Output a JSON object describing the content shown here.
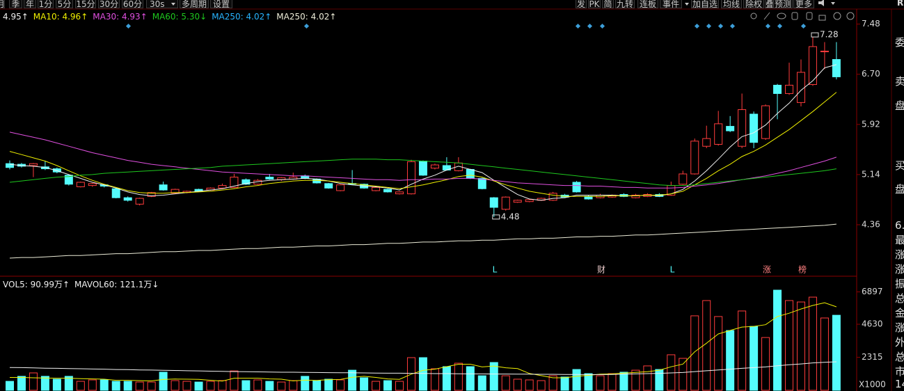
{
  "toolbar": {
    "left": [
      "月",
      "季",
      "年",
      "1分",
      "5分",
      "15分",
      "30分",
      "60分",
      "30s",
      "多周期",
      "设置"
    ],
    "right": [
      "发",
      "PK",
      "简",
      "九转",
      "连板",
      "事件",
      "加自选",
      "均线",
      "除权",
      "叠",
      "预测",
      "更多"
    ]
  },
  "top_right": "R",
  "side_panel": [
    "委",
    "卖",
    "盘",
    "买",
    "盘",
    "6.",
    "最",
    "涨",
    "涨",
    "振",
    "总",
    "金",
    "涨",
    "外",
    "总",
    "市",
    "14"
  ],
  "chart_data": [
    {
      "type": "candlestick",
      "categories": [
        null,
        null,
        null,
        null,
        null,
        null,
        null,
        null,
        null,
        null,
        null,
        null,
        null,
        null,
        null,
        null,
        null,
        null,
        null,
        null,
        null,
        null,
        null,
        null,
        null,
        null,
        null,
        null,
        null,
        null,
        null,
        null,
        null,
        null,
        null,
        null,
        null,
        null,
        null,
        null,
        null,
        null,
        null,
        null,
        null,
        null,
        null,
        null,
        null,
        null,
        null,
        null,
        null,
        null,
        null,
        null,
        null,
        null,
        null,
        null,
        null,
        null,
        null,
        null,
        null,
        null,
        null,
        null,
        null,
        null,
        null
      ],
      "open": [
        5.31,
        5.3,
        5.28,
        5.26,
        5.23,
        5.13,
        4.95,
        4.97,
        4.98,
        4.92,
        4.78,
        4.68,
        4.8,
        4.98,
        4.85,
        4.86,
        4.91,
        4.9,
        4.93,
        4.94,
        5.06,
        4.99,
        5.1,
        5.06,
        5.07,
        5.12,
        5.07,
        5.0,
        4.89,
        5.0,
        4.99,
        4.89,
        4.91,
        4.84,
        4.84,
        5.35,
        5.24,
        5.28,
        5.2,
        5.22,
        5.08,
        4.78,
        4.6,
        4.71,
        4.72,
        4.74,
        4.74,
        4.82,
        5.02,
        4.8,
        4.78,
        4.79,
        4.83,
        4.78,
        4.8,
        4.83,
        4.82,
        4.99,
        5.15,
        5.58,
        5.61,
        5.89,
        5.58,
        6.08,
        5.7,
        6.53,
        6.4,
        6.26,
        6.54,
        7.05,
        6.93
      ],
      "high": [
        5.36,
        5.32,
        5.32,
        5.35,
        5.25,
        5.14,
        5.03,
        5.01,
        4.99,
        4.93,
        4.8,
        4.78,
        4.87,
        5.03,
        4.92,
        4.89,
        4.92,
        4.94,
        5.0,
        5.15,
        5.08,
        5.07,
        5.15,
        5.1,
        5.17,
        5.14,
        5.08,
        5.01,
        4.99,
        5.21,
        5.0,
        4.95,
        4.92,
        4.88,
        5.37,
        5.36,
        5.31,
        5.41,
        5.41,
        5.23,
        5.09,
        4.79,
        4.8,
        4.75,
        4.76,
        4.78,
        4.87,
        4.84,
        5.04,
        4.82,
        4.84,
        4.83,
        4.85,
        4.84,
        4.85,
        4.85,
        5.03,
        5.2,
        5.7,
        5.9,
        6.13,
        6.05,
        6.4,
        6.12,
        6.23,
        6.55,
        6.88,
        6.93,
        7.28,
        7.2,
        7.2
      ],
      "low": [
        5.22,
        5.25,
        5.1,
        5.21,
        5.16,
        4.97,
        4.94,
        4.95,
        4.94,
        4.77,
        4.72,
        4.66,
        4.79,
        4.89,
        4.84,
        4.85,
        4.87,
        4.89,
        4.92,
        4.93,
        4.98,
        4.98,
        5.06,
        5.04,
        5.06,
        5.07,
        5.0,
        4.92,
        4.88,
        4.98,
        4.92,
        4.88,
        4.86,
        4.83,
        4.83,
        5.12,
        5.22,
        5.2,
        5.19,
        5.07,
        4.91,
        4.48,
        4.58,
        4.7,
        4.71,
        4.73,
        4.73,
        4.78,
        4.86,
        4.75,
        4.77,
        4.78,
        4.79,
        4.77,
        4.79,
        4.79,
        4.81,
        4.98,
        5.14,
        5.55,
        5.59,
        5.8,
        5.55,
        5.55,
        5.68,
        6.0,
        6.38,
        6.2,
        6.52,
        6.78,
        6.62
      ],
      "close": [
        5.25,
        5.27,
        5.31,
        5.23,
        5.18,
        4.99,
        5.02,
        5.0,
        4.96,
        4.78,
        4.74,
        4.77,
        4.86,
        4.9,
        4.91,
        4.88,
        4.88,
        4.93,
        4.97,
        5.1,
        4.99,
        5.05,
        5.07,
        5.09,
        5.1,
        5.08,
        5.01,
        4.93,
        4.98,
        4.99,
        4.93,
        4.94,
        4.87,
        4.87,
        5.34,
        5.13,
        5.29,
        5.21,
        5.32,
        5.08,
        4.92,
        4.63,
        4.79,
        4.74,
        4.75,
        4.77,
        4.85,
        4.79,
        4.87,
        4.76,
        4.82,
        4.82,
        4.8,
        4.82,
        4.83,
        4.8,
        4.97,
        5.15,
        5.66,
        5.7,
        5.93,
        5.82,
        6.15,
        5.64,
        6.21,
        6.4,
        6.53,
        6.73,
        7.13,
        7.06,
        6.66
      ],
      "up_color": "#ff3c3c",
      "down_color": "#54fcfc",
      "lines": [
        {
          "color": "#f0f0f0",
          "values": [
            5.3,
            5.28,
            5.27,
            5.25,
            5.2,
            5.14,
            5.08,
            5.02,
            4.98,
            4.93,
            4.87,
            4.83,
            4.81,
            4.82,
            4.84,
            4.86,
            4.88,
            4.9,
            4.92,
            4.96,
            5.0,
            5.03,
            5.05,
            5.06,
            5.07,
            5.08,
            5.07,
            5.04,
            5.0,
            4.98,
            4.96,
            4.95,
            4.93,
            4.9,
            4.99,
            5.07,
            5.13,
            5.21,
            5.27,
            5.22,
            5.17,
            5.05,
            4.94,
            4.83,
            4.76,
            4.74,
            4.77,
            4.78,
            4.82,
            4.82,
            4.82,
            4.82,
            4.81,
            4.81,
            4.82,
            4.81,
            4.84,
            4.91,
            5.04,
            5.2,
            5.38,
            5.57,
            5.73,
            5.79,
            5.91,
            6.09,
            6.25,
            6.45,
            6.6,
            6.8,
            6.85
          ]
        },
        {
          "color": "#f0f000",
          "values": [
            5.5,
            5.45,
            5.4,
            5.35,
            5.28,
            5.2,
            5.12,
            5.05,
            4.99,
            4.94,
            4.89,
            4.86,
            4.85,
            4.85,
            4.86,
            4.86,
            4.87,
            4.88,
            4.9,
            4.92,
            4.95,
            4.97,
            5.0,
            5.02,
            5.04,
            5.05,
            5.05,
            5.04,
            5.02,
            5.0,
            4.98,
            4.96,
            4.94,
            4.92,
            4.95,
            4.98,
            5.02,
            5.06,
            5.11,
            5.13,
            5.1,
            5.04,
            4.98,
            4.93,
            4.88,
            4.85,
            4.82,
            4.8,
            4.8,
            4.8,
            4.8,
            4.81,
            4.81,
            4.81,
            4.82,
            4.82,
            4.84,
            4.88,
            4.98,
            5.08,
            5.2,
            5.3,
            5.42,
            5.5,
            5.6,
            5.72,
            5.84,
            5.98,
            6.12,
            6.27,
            6.42
          ]
        },
        {
          "color": "#e050e0",
          "values": [
            5.8,
            5.76,
            5.72,
            5.68,
            5.63,
            5.58,
            5.53,
            5.48,
            5.44,
            5.4,
            5.36,
            5.33,
            5.3,
            5.28,
            5.26,
            5.24,
            5.22,
            5.2,
            5.18,
            5.17,
            5.16,
            5.15,
            5.14,
            5.13,
            5.12,
            5.12,
            5.11,
            5.1,
            5.09,
            5.08,
            5.07,
            5.06,
            5.06,
            5.05,
            5.06,
            5.06,
            5.07,
            5.07,
            5.08,
            5.08,
            5.07,
            5.05,
            5.03,
            5.01,
            5.0,
            4.99,
            4.98,
            4.97,
            4.97,
            4.96,
            4.96,
            4.95,
            4.94,
            4.94,
            4.93,
            4.93,
            4.93,
            4.94,
            4.96,
            4.98,
            5.0,
            5.03,
            5.06,
            5.09,
            5.12,
            5.16,
            5.2,
            5.25,
            5.3,
            5.35,
            5.41
          ]
        },
        {
          "color": "#1ec81e",
          "values": [
            5.02,
            5.04,
            5.06,
            5.08,
            5.1,
            5.11,
            5.13,
            5.14,
            5.16,
            5.17,
            5.18,
            5.19,
            5.2,
            5.21,
            5.22,
            5.23,
            5.24,
            5.25,
            5.27,
            5.28,
            5.29,
            5.3,
            5.31,
            5.32,
            5.33,
            5.34,
            5.35,
            5.36,
            5.37,
            5.38,
            5.38,
            5.38,
            5.37,
            5.37,
            5.36,
            5.35,
            5.34,
            5.33,
            5.32,
            5.3,
            5.28,
            5.26,
            5.24,
            5.22,
            5.2,
            5.18,
            5.16,
            5.14,
            5.12,
            5.1,
            5.08,
            5.06,
            5.04,
            5.02,
            5.0,
            4.98,
            4.97,
            4.97,
            4.98,
            5.0,
            5.02,
            5.04,
            5.06,
            5.08,
            5.1,
            5.12,
            5.14,
            5.16,
            5.18,
            5.2,
            5.23
          ]
        },
        {
          "color": "#ececd8",
          "values": [
            3.84,
            3.85,
            3.85,
            3.86,
            3.87,
            3.88,
            3.88,
            3.89,
            3.9,
            3.91,
            3.91,
            3.92,
            3.93,
            3.94,
            3.94,
            3.95,
            3.96,
            3.96,
            3.97,
            3.98,
            3.99,
            3.99,
            4.0,
            4.01,
            4.01,
            4.02,
            4.03,
            4.03,
            4.04,
            4.05,
            4.05,
            4.06,
            4.07,
            4.07,
            4.08,
            4.09,
            4.09,
            4.1,
            4.11,
            4.11,
            4.12,
            4.12,
            4.13,
            4.14,
            4.14,
            4.15,
            4.15,
            4.16,
            4.17,
            4.17,
            4.18,
            4.18,
            4.19,
            4.2,
            4.2,
            4.21,
            4.22,
            4.23,
            4.24,
            4.25,
            4.26,
            4.27,
            4.28,
            4.29,
            4.3,
            4.31,
            4.32,
            4.33,
            4.34,
            4.35,
            4.37
          ]
        }
      ],
      "legend": [
        {
          "text": "4.95↑",
          "color": "#f0f0f0"
        },
        {
          "text": "MA10: 4.96↑",
          "color": "#f0f000"
        },
        {
          "text": "MA30: 4.93↑",
          "color": "#e050e0"
        },
        {
          "text": "MA60: 5.30↓",
          "color": "#1ec81e"
        },
        {
          "text": "MA250: 4.02↑",
          "color": "#28b4ff"
        },
        {
          "text": "MA250: 4.02↑",
          "color": "#ececd8"
        }
      ],
      "annotations": [
        {
          "text": "L",
          "color": "#54fcfc"
        },
        {
          "text": "财",
          "color": "#e8c8c8"
        },
        {
          "text": "L",
          "color": "#54fcfc"
        },
        {
          "text": "涨",
          "color": "#ff8080"
        },
        {
          "text": "榜",
          "color": "#ff8080"
        }
      ],
      "ylim": [
        3.57,
        7.66
      ],
      "yticks": [
        7.48,
        {
          "value": 6.7,
          "label": "6.70"
        },
        5.92,
        5.14,
        4.36
      ],
      "grid": false
    },
    {
      "type": "bar",
      "values": [
        630,
        980,
        1220,
        980,
        780,
        980,
        630,
        730,
        730,
        630,
        630,
        580,
        580,
        1270,
        680,
        630,
        580,
        630,
        680,
        1360,
        680,
        730,
        630,
        580,
        680,
        980,
        680,
        780,
        730,
        1410,
        880,
        630,
        680,
        630,
        2290,
        2290,
        1510,
        1660,
        1900,
        1660,
        1020,
        1950,
        1020,
        780,
        730,
        680,
        1020,
        930,
        1460,
        1170,
        1020,
        1170,
        1270,
        1410,
        1710,
        1460,
        2490,
        2240,
        5220,
        6290,
        5170,
        4190,
        5560,
        4480,
        3700,
        7020,
        6290,
        6190,
        6530,
        5070,
        5260
      ],
      "lines": [
        {
          "color": "#f0f000",
          "values": [
            900,
            900,
            880,
            860,
            850,
            850,
            820,
            800,
            780,
            700,
            700,
            680,
            660,
            760,
            790,
            780,
            770,
            700,
            650,
            850,
            850,
            850,
            800,
            780,
            660,
            710,
            690,
            750,
            760,
            910,
            980,
            900,
            800,
            770,
            1130,
            1400,
            1480,
            1660,
            1830,
            1830,
            1640,
            1700,
            1580,
            1520,
            1180,
            1030,
            880,
            880,
            980,
            1050,
            1130,
            1150,
            1210,
            1260,
            1300,
            1410,
            1650,
            1840,
            2700,
            3300,
            3950,
            4200,
            4430,
            4480,
            4600,
            5170,
            5400,
            5700,
            5950,
            6140,
            5850
          ]
        },
        {
          "color": "#f0f0f0",
          "values": [
            1600,
            1590,
            1570,
            1550,
            1540,
            1520,
            1510,
            1490,
            1480,
            1460,
            1450,
            1430,
            1420,
            1400,
            1390,
            1370,
            1360,
            1340,
            1330,
            1310,
            1300,
            1290,
            1280,
            1270,
            1270,
            1260,
            1250,
            1240,
            1230,
            1230,
            1220,
            1210,
            1200,
            1200,
            1190,
            1180,
            1170,
            1170,
            1160,
            1150,
            1150,
            1140,
            1140,
            1130,
            1130,
            1120,
            1120,
            1110,
            1110,
            1100,
            1100,
            1110,
            1130,
            1150,
            1170,
            1190,
            1220,
            1250,
            1310,
            1370,
            1430,
            1480,
            1540,
            1590,
            1640,
            1720,
            1790,
            1850,
            1920,
            1960,
            2000
          ]
        }
      ],
      "legend": [
        {
          "text": "VOL5: 90.99万↑",
          "color": "#f0f0f0"
        },
        {
          "text": "MAVOL60: 121.1万↓",
          "color": "#f0f0f0"
        }
      ],
      "unit_label": "X1000",
      "ylim": [
        0,
        7850
      ],
      "yticks": [
        6897,
        4630,
        2315
      ],
      "grid": false
    }
  ]
}
